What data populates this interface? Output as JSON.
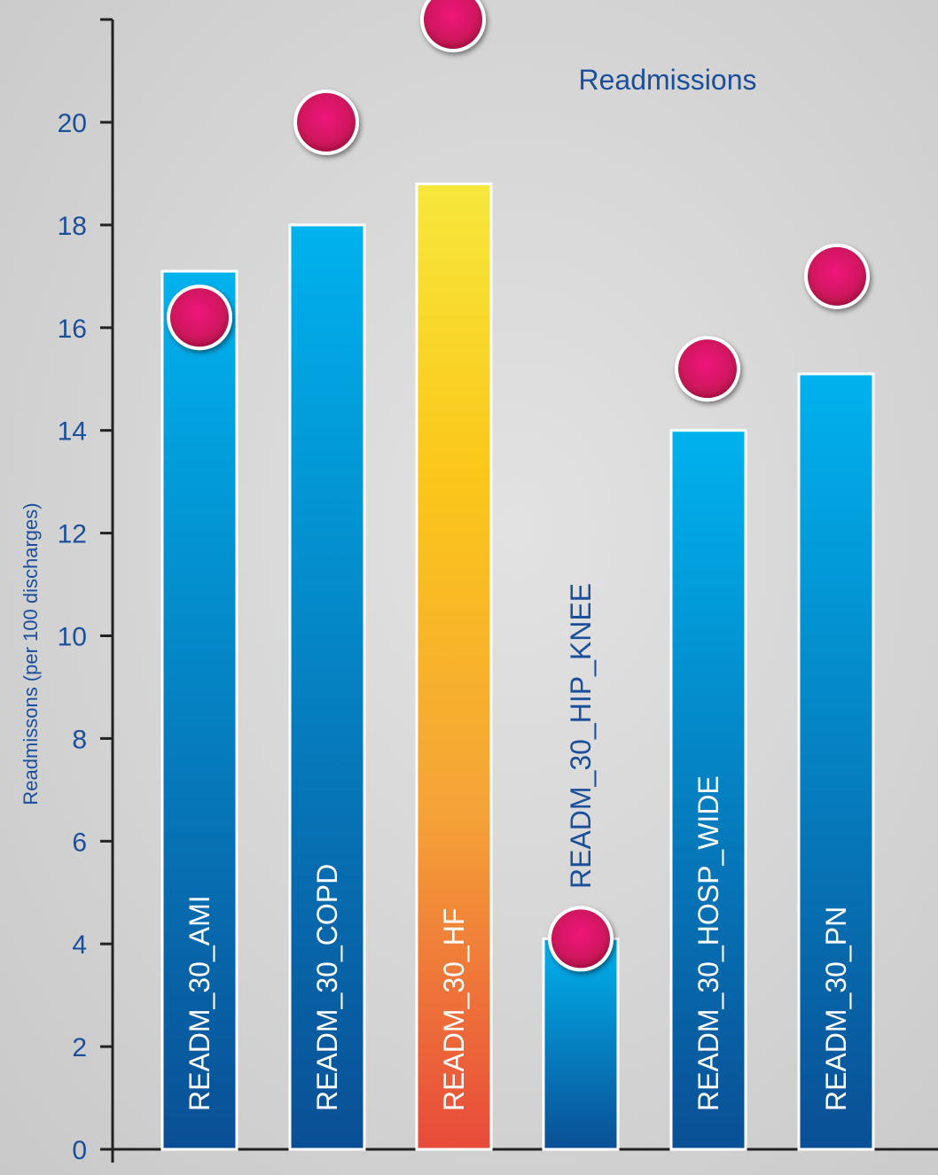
{
  "chart_data": {
    "type": "bar",
    "ylabel": "Readmissons (per 100 discharges)",
    "ylim": [
      0,
      22
    ],
    "yticks": [
      0,
      2,
      4,
      6,
      8,
      10,
      12,
      14,
      16,
      18,
      20
    ],
    "categories": [
      "READM_30_AMI",
      "READM_30_COPD",
      "READM_30_HF",
      "READM_30_HIP_KNEE",
      "READM_30_HOSP_WIDE",
      "READM_30_PN"
    ],
    "series": [
      {
        "name": "",
        "kind": "bar",
        "values": [
          17.1,
          18.0,
          18.8,
          4.1,
          14.0,
          15.1
        ]
      },
      {
        "name": "Readmissions",
        "kind": "marker",
        "values": [
          16.2,
          20.0,
          22.0,
          4.1,
          15.2,
          17.0
        ]
      }
    ],
    "highlight_category": "READM_30_HF",
    "legend": {
      "text": "Readmissions",
      "position": "top-right"
    },
    "grid": false,
    "colors": {
      "bar_top": "#00b2ee",
      "bar_bottom": "#0a4f95",
      "highlight_top": "#f7e73c",
      "highlight_mid": "#f5a338",
      "highlight_bottom": "#e84a3a",
      "marker": "#d8136b",
      "axis_text": "#1b4f9c"
    }
  }
}
